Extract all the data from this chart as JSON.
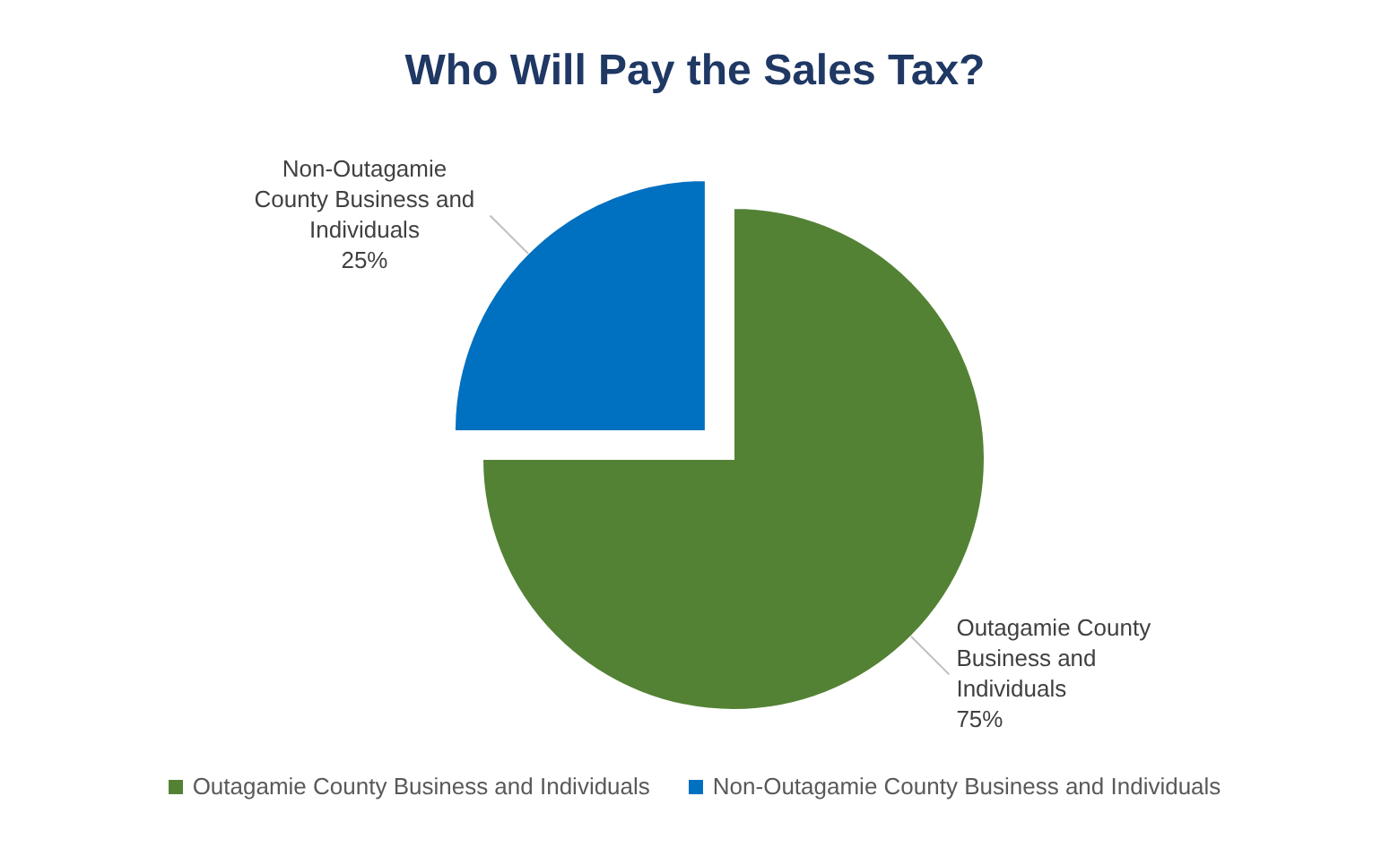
{
  "chart_data": {
    "type": "pie",
    "title": "Who Will Pay the Sales Tax?",
    "categories": [
      "Outagamie County Business and Individuals",
      "Non-Outagamie County Business and Individuals"
    ],
    "values": [
      75,
      25
    ],
    "value_labels": [
      "75%",
      "25%"
    ],
    "colors": [
      "#548235",
      "#0070c0"
    ],
    "legend": "bottom"
  }
}
